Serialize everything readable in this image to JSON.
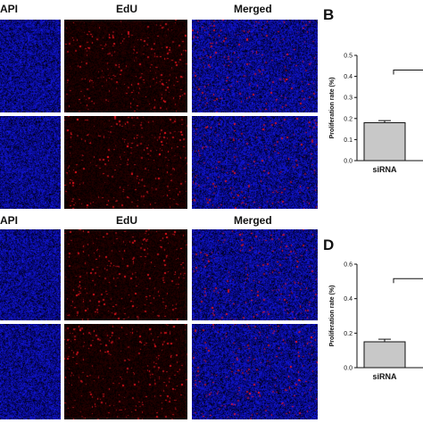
{
  "figure": {
    "top": {
      "column_headers": [
        "API",
        "EdU",
        "Merged"
      ],
      "panel_letter": "B"
    },
    "bottom": {
      "column_headers": [
        "API",
        "EdU",
        "Merged"
      ],
      "panel_letter": "D"
    }
  },
  "chart_data": [
    {
      "type": "bar",
      "panel": "B",
      "ylabel": "Proliferation rate (%)",
      "categories": [
        "siRNA"
      ],
      "values": [
        0.18
      ],
      "error": [
        0.01
      ],
      "ylim": [
        0,
        0.5
      ],
      "yticks": [
        "0.0",
        "0.1",
        "0.2",
        "0.3",
        "0.4",
        "0.5"
      ],
      "bar_color": "#c8c8c8",
      "significance_bracket": true
    },
    {
      "type": "bar",
      "panel": "D",
      "ylabel": "Proliferation rate (%)",
      "categories": [
        "siRNA"
      ],
      "values": [
        0.15
      ],
      "error": [
        0.015
      ],
      "ylim": [
        0,
        0.6
      ],
      "yticks": [
        "0.0",
        "0.2",
        "0.4",
        "0.6"
      ],
      "bar_color": "#c8c8c8",
      "significance_bracket": true
    }
  ],
  "colors": {
    "dapi": "#1a1fd0",
    "edu": "#d01a1a",
    "background": "#000000"
  }
}
